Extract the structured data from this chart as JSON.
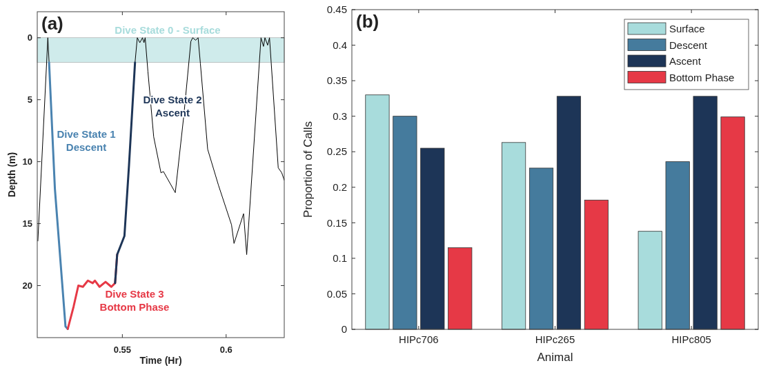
{
  "chart_data": [
    {
      "type": "line",
      "title": "(a)",
      "xlabel": "Time (Hr)",
      "ylabel": "Depth (m)",
      "xlim": [
        0.509,
        0.628
      ],
      "ylim": [
        24.2,
        -2.1
      ],
      "xticks": [
        0.55,
        0.6
      ],
      "yticks": [
        0,
        5,
        10,
        15,
        20
      ],
      "grid": false,
      "bands": [
        {
          "axis": "y",
          "from": 0,
          "to": 2,
          "label": "Dive State 0 - Surface",
          "color": "#a8dcdc"
        }
      ],
      "series": [
        {
          "color": "#000000",
          "x": [
            0.5093,
            0.5141,
            0.5147,
            null,
            0.5561,
            0.5572,
            0.5584,
            0.5597,
            0.5604,
            0.561,
            0.5623,
            0.5651,
            0.5686,
            0.5698,
            0.5755,
            0.5796,
            0.583,
            0.5839,
            0.5853,
            0.5865,
            0.5876,
            0.5911,
            0.5963,
            0.6026,
            0.6038,
            0.6084,
            0.6099,
            0.616,
            0.6168,
            0.618,
            0.6187,
            0.62,
            0.6209,
            0.6217,
            0.6251,
            0.6268,
            0.628
          ],
          "values": [
            16.4,
            0,
            2,
            null,
            2,
            0,
            0.4,
            0,
            0.4,
            0,
            2.7,
            8,
            10.9,
            10.8,
            12.5,
            6.3,
            0.3,
            0,
            0.2,
            0,
            2.1,
            9,
            11.9,
            15.1,
            16.6,
            14.2,
            17.5,
            2,
            0,
            0.7,
            0,
            0.6,
            0,
            2,
            10.5,
            10.9,
            11.5
          ]
        },
        {
          "name": "Dive State 1\nDescent",
          "color": "#4a83b0",
          "x": [
            0.5147,
            0.5175,
            0.521,
            0.5226,
            0.5237
          ],
          "values": [
            2,
            12.2,
            19.8,
            23.3,
            23.5
          ]
        },
        {
          "name": "Dive State 3\nBottom Phase",
          "color": "#e63946",
          "x": [
            0.5237,
            0.5265,
            0.5288,
            0.531,
            0.5334,
            0.5357,
            0.5368,
            0.539,
            0.5419,
            0.5447,
            0.5465,
            0.5475
          ],
          "values": [
            23.5,
            21.7,
            20,
            20.1,
            19.6,
            19.8,
            19.6,
            20.1,
            19.7,
            20.1,
            19.8,
            17.5
          ]
        },
        {
          "name": "Dive State 2\nAscent",
          "color": "#1d3557",
          "x": [
            0.5465,
            0.5475,
            0.551,
            0.5532,
            0.5561
          ],
          "values": [
            19.8,
            17.5,
            16,
            10.3,
            2
          ]
        }
      ]
    },
    {
      "type": "bar",
      "title": "(b)",
      "xlabel": "Animal",
      "ylabel": "Proportion of Calls",
      "categories": [
        "HIPc706",
        "HIPc265",
        "HIPc805"
      ],
      "ylim": [
        0,
        0.45
      ],
      "yticks": [
        0,
        0.05,
        0.1,
        0.15,
        0.2,
        0.25,
        0.3,
        0.35,
        0.4,
        0.45
      ],
      "grid": false,
      "legend": "top right",
      "series": [
        {
          "name": "Surface",
          "color": "#a8dcdc",
          "values": [
            0.33,
            0.263,
            0.138
          ]
        },
        {
          "name": "Descent",
          "color": "#457b9d",
          "values": [
            0.3,
            0.227,
            0.236
          ]
        },
        {
          "name": "Ascent",
          "color": "#1d3557",
          "values": [
            0.255,
            0.328,
            0.328
          ]
        },
        {
          "name": "Bottom Phase",
          "color": "#e63946",
          "values": [
            0.115,
            0.182,
            0.299
          ]
        }
      ]
    }
  ]
}
